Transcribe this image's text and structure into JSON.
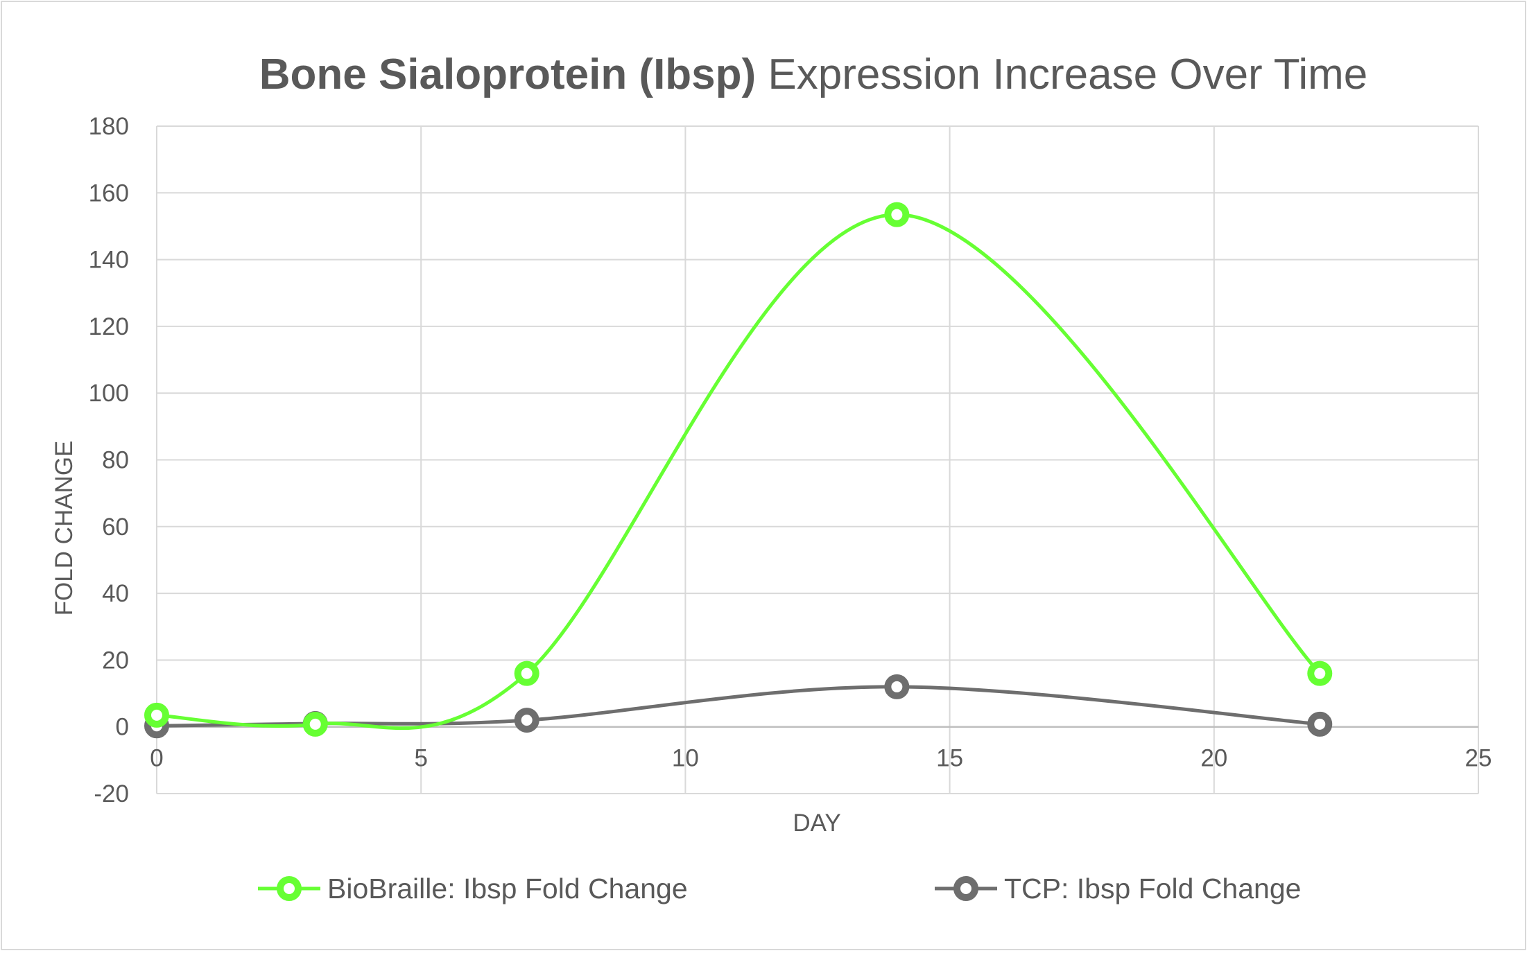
{
  "chart_data": {
    "type": "scatter",
    "title_bold": "Bone Sialoprotein (Ibsp)",
    "title_rest": " Expression Increase Over Time",
    "xlabel": "DAY",
    "ylabel": "FOLD CHANGE",
    "xlim": [
      0,
      25
    ],
    "ylim": [
      -20,
      180
    ],
    "x_ticks": [
      "0",
      "5",
      "10",
      "15",
      "20",
      "25"
    ],
    "y_ticks": [
      "-20",
      "0",
      "20",
      "40",
      "60",
      "80",
      "100",
      "120",
      "140",
      "160",
      "180"
    ],
    "grid": true,
    "smoothed": true,
    "legend_position": "bottom",
    "series": [
      {
        "name": "BioBraille: Ibsp Fold Change",
        "color": "#66ff33",
        "x": [
          0,
          3,
          7,
          14,
          22
        ],
        "y": [
          3.5,
          0.8,
          16,
          153.5,
          16
        ]
      },
      {
        "name": "TCP: Ibsp Fold Change",
        "color": "#6e6e6e",
        "x": [
          0,
          3,
          7,
          14,
          22
        ],
        "y": [
          0.3,
          1,
          2,
          12,
          0.8
        ]
      }
    ]
  }
}
